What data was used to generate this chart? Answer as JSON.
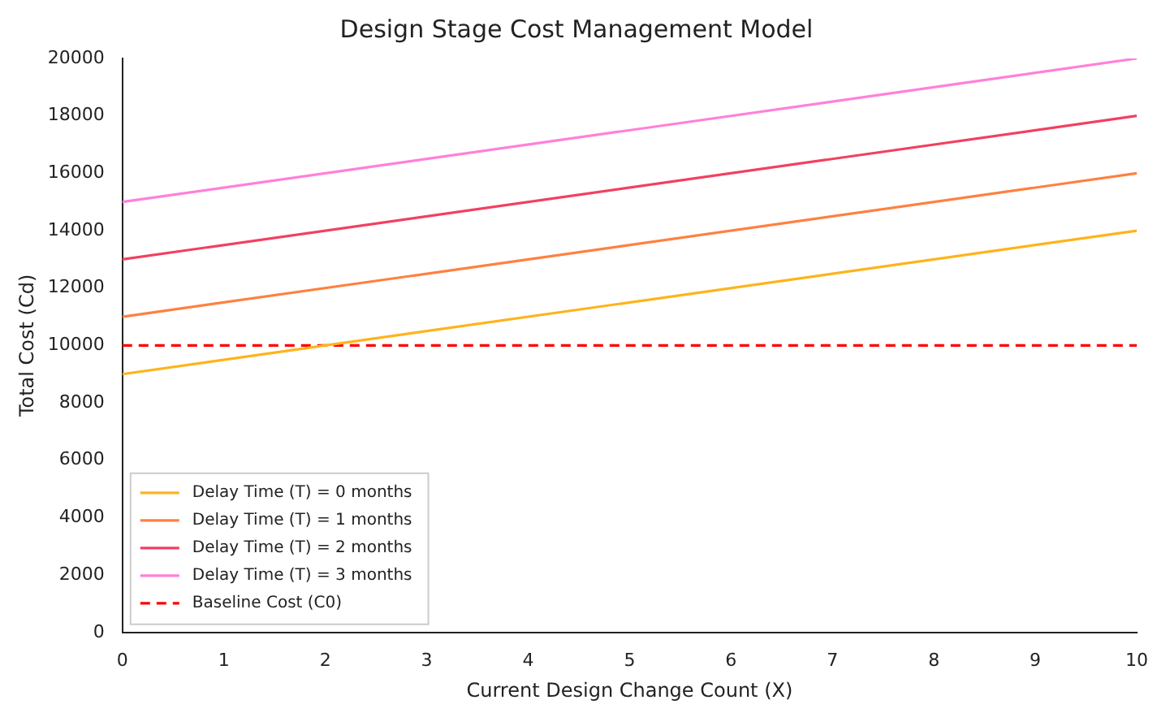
{
  "chart_data": {
    "type": "line",
    "title": "Design Stage Cost Management Model",
    "xlabel": "Current Design Change Count (X)",
    "ylabel": "Total Cost (Cd)",
    "x": [
      0,
      10
    ],
    "series": [
      {
        "name": "Delay Time (T) = 0 months",
        "color": "#ffb31a",
        "values": [
          9000,
          14000
        ]
      },
      {
        "name": "Delay Time (T) = 1 months",
        "color": "#ff8040",
        "values": [
          11000,
          16000
        ]
      },
      {
        "name": "Delay Time (T) = 2 months",
        "color": "#f24060",
        "values": [
          13000,
          18000
        ]
      },
      {
        "name": "Delay Time (T) = 3 months",
        "color": "#ff80d9",
        "values": [
          15000,
          20000
        ]
      }
    ],
    "ref_lines": [
      {
        "axis": "y",
        "value": 10000,
        "label": "Baseline Cost (C0)",
        "color": "#ff0000",
        "line_style": "dashed"
      }
    ],
    "xlim": [
      0,
      10
    ],
    "xticks": [
      0,
      1,
      2,
      3,
      4,
      5,
      6,
      7,
      8,
      9,
      10
    ],
    "ylim": [
      0,
      20000
    ],
    "yticks": [
      0,
      2000,
      4000,
      6000,
      8000,
      10000,
      12000,
      14000,
      16000,
      18000,
      20000
    ],
    "grid": false,
    "legend": "bottom left",
    "marker": "none",
    "line_style": "solid"
  }
}
